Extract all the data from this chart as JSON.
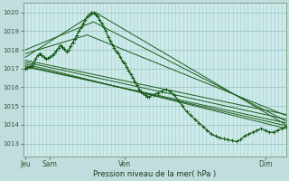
{
  "bg_color": "#c0dede",
  "plot_bg_color": "#cceaea",
  "grid_color_v": "#aacccc",
  "grid_color_h": "#99bbbb",
  "line_color": "#1a5c1a",
  "ylabel_ticks": [
    1013,
    1014,
    1015,
    1016,
    1017,
    1018,
    1019,
    1020
  ],
  "xlabel": "Pression niveau de la mer( hPa )",
  "x_tick_labels": [
    "Jeu",
    "Sam",
    "Ven",
    "Dim"
  ],
  "x_tick_positions": [
    0.0,
    0.6,
    2.4,
    5.8
  ],
  "xlim": [
    -0.05,
    6.3
  ],
  "ylim": [
    1012.3,
    1020.5
  ],
  "num_vlines": 70,
  "main_line_x": [
    0.0,
    0.05,
    0.1,
    0.15,
    0.2,
    0.25,
    0.3,
    0.35,
    0.4,
    0.45,
    0.5,
    0.55,
    0.6,
    0.65,
    0.7,
    0.75,
    0.8,
    0.85,
    0.9,
    0.95,
    1.0,
    1.05,
    1.1,
    1.15,
    1.2,
    1.25,
    1.3,
    1.35,
    1.4,
    1.45,
    1.5,
    1.55,
    1.6,
    1.65,
    1.7,
    1.75,
    1.8,
    1.85,
    1.9,
    1.95,
    2.0,
    2.05,
    2.1,
    2.15,
    2.2,
    2.25,
    2.3,
    2.35,
    2.4,
    2.45,
    2.5,
    2.55,
    2.6,
    2.65,
    2.7,
    2.75,
    2.8,
    2.85,
    2.9,
    2.95,
    3.0,
    3.1,
    3.2,
    3.3,
    3.4,
    3.5,
    3.6,
    3.7,
    3.8,
    3.9,
    4.0,
    4.1,
    4.2,
    4.3,
    4.4,
    4.5,
    4.6,
    4.7,
    4.8,
    4.9,
    5.0,
    5.1,
    5.2,
    5.3,
    5.4,
    5.5,
    5.6,
    5.7,
    5.8,
    5.9,
    6.0,
    6.1,
    6.2,
    6.3
  ],
  "main_line_y": [
    1017.0,
    1017.05,
    1017.1,
    1017.15,
    1017.3,
    1017.5,
    1017.7,
    1017.8,
    1017.7,
    1017.6,
    1017.5,
    1017.55,
    1017.6,
    1017.7,
    1017.8,
    1017.95,
    1018.1,
    1018.25,
    1018.15,
    1018.05,
    1017.9,
    1018.0,
    1018.2,
    1018.4,
    1018.6,
    1018.8,
    1019.0,
    1019.2,
    1019.4,
    1019.6,
    1019.8,
    1019.9,
    1020.0,
    1020.0,
    1019.9,
    1019.8,
    1019.6,
    1019.4,
    1019.2,
    1019.0,
    1018.7,
    1018.5,
    1018.3,
    1018.1,
    1017.9,
    1017.8,
    1017.6,
    1017.4,
    1017.3,
    1017.1,
    1016.9,
    1016.7,
    1016.5,
    1016.3,
    1016.1,
    1015.9,
    1015.8,
    1015.7,
    1015.6,
    1015.5,
    1015.5,
    1015.6,
    1015.7,
    1015.8,
    1015.9,
    1015.8,
    1015.6,
    1015.3,
    1015.0,
    1014.7,
    1014.5,
    1014.3,
    1014.1,
    1013.9,
    1013.7,
    1013.5,
    1013.4,
    1013.3,
    1013.25,
    1013.2,
    1013.15,
    1013.1,
    1013.2,
    1013.4,
    1013.5,
    1013.6,
    1013.7,
    1013.8,
    1013.7,
    1013.6,
    1013.6,
    1013.7,
    1013.8,
    1013.9
  ],
  "ensemble_lines": [
    {
      "x": [
        0.0,
        6.3
      ],
      "y": [
        1017.1,
        1014.1
      ]
    },
    {
      "x": [
        0.0,
        6.3
      ],
      "y": [
        1017.15,
        1013.95
      ]
    },
    {
      "x": [
        0.0,
        6.3
      ],
      "y": [
        1017.25,
        1013.8
      ]
    },
    {
      "x": [
        0.0,
        6.3
      ],
      "y": [
        1017.35,
        1014.3
      ]
    },
    {
      "x": [
        0.0,
        6.3
      ],
      "y": [
        1017.45,
        1014.55
      ]
    },
    {
      "x": [
        0.0,
        1.7,
        6.3
      ],
      "y": [
        1017.6,
        1020.0,
        1014.0
      ]
    },
    {
      "x": [
        0.0,
        1.65,
        6.3
      ],
      "y": [
        1018.0,
        1019.5,
        1014.2
      ]
    },
    {
      "x": [
        0.0,
        1.5,
        6.3
      ],
      "y": [
        1017.8,
        1018.8,
        1014.5
      ]
    }
  ]
}
